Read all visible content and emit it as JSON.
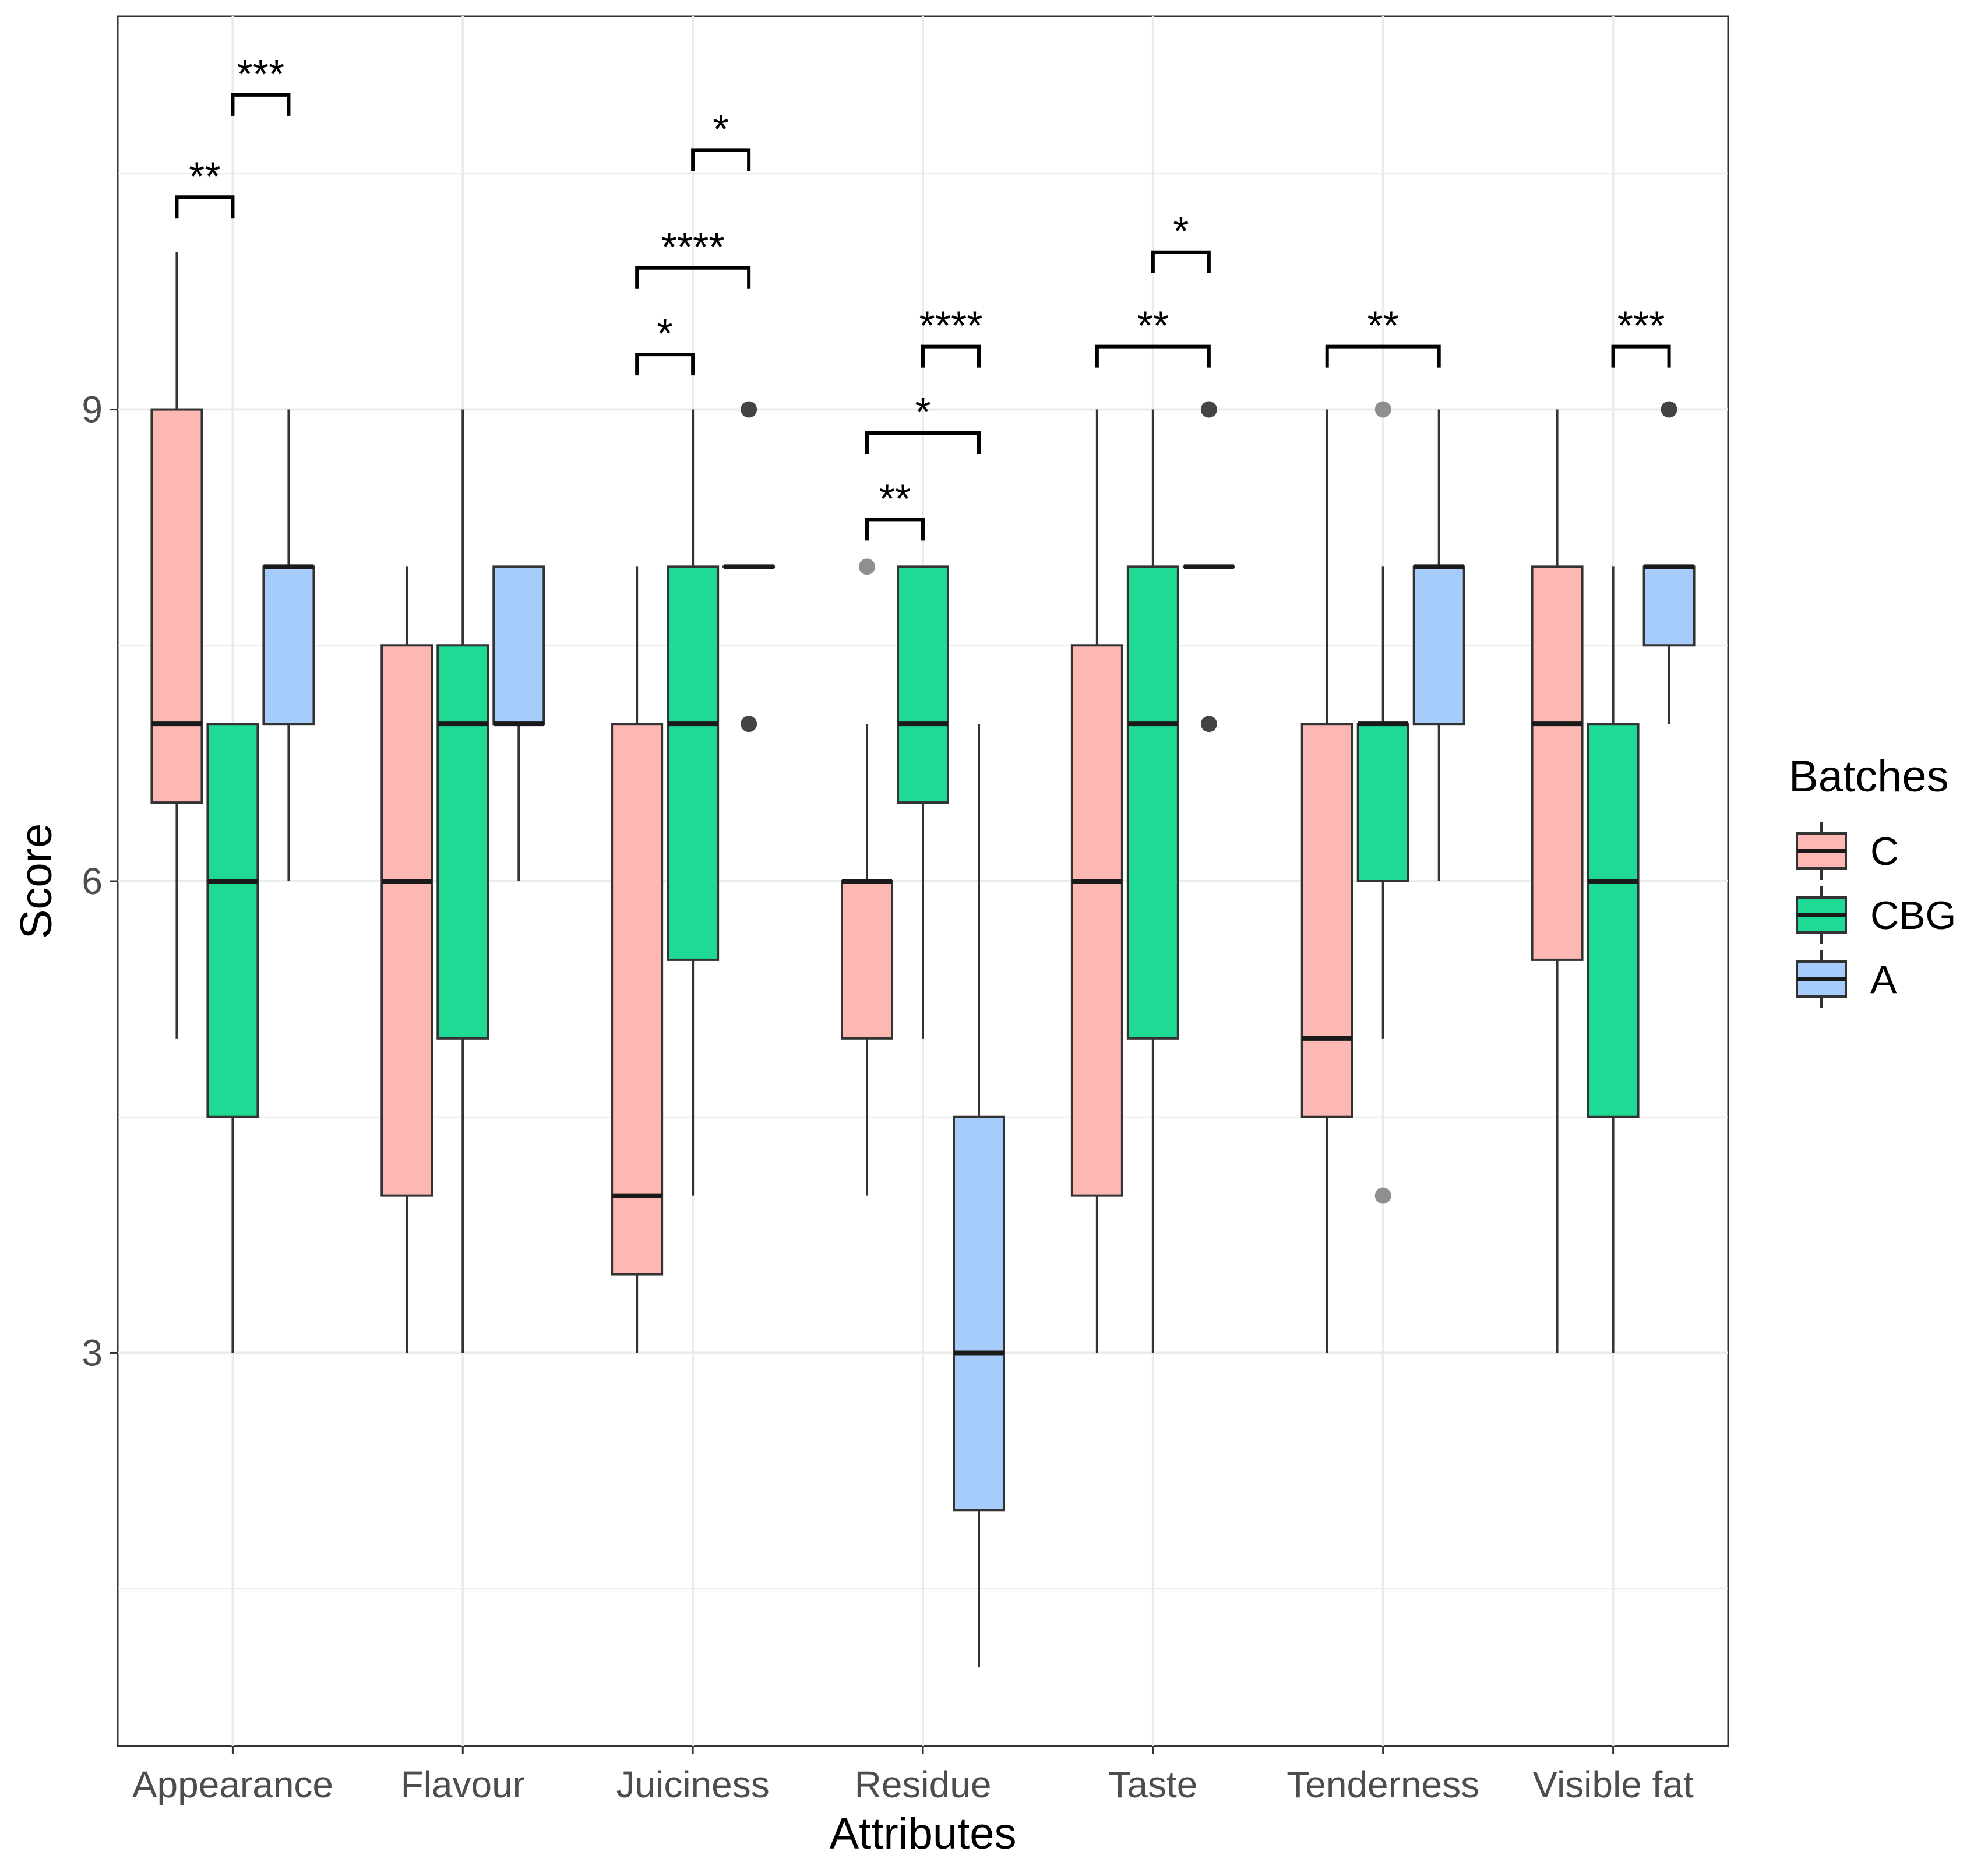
{
  "chart_data": {
    "type": "boxplot",
    "title": "",
    "xlabel": "Attributes",
    "ylabel": "Score",
    "ylim": [
      0.5,
      11.5
    ],
    "yticks": [
      3,
      6,
      9
    ],
    "grid": true,
    "legend": {
      "title": "Batches",
      "position": "right",
      "entries": [
        {
          "name": "C",
          "color": "#F8766D"
        },
        {
          "name": "CBG",
          "color": "#00BA38"
        },
        {
          "name": "A",
          "color": "#619CFF"
        }
      ]
    },
    "box_colors": {
      "C": "#FDB8B4",
      "CBG": "#1FDA95",
      "A": "#A6CCFB"
    },
    "categories": [
      "Appearance",
      "Flavour",
      "Juiciness",
      "Residue",
      "Taste",
      "Tenderness",
      "Visible fat"
    ],
    "boxes": [
      {
        "category": "Appearance",
        "batch": "C",
        "min": 5,
        "q1": 6.5,
        "median": 7,
        "q3": 9,
        "max": 10,
        "outliers": []
      },
      {
        "category": "Appearance",
        "batch": "CBG",
        "min": 3,
        "q1": 4.5,
        "median": 6,
        "q3": 7,
        "max": 7,
        "outliers": []
      },
      {
        "category": "Appearance",
        "batch": "A",
        "min": 6,
        "q1": 7,
        "median": 8,
        "q3": 8,
        "max": 9,
        "outliers": []
      },
      {
        "category": "Flavour",
        "batch": "C",
        "min": 3,
        "q1": 4,
        "median": 6,
        "q3": 7.5,
        "max": 8,
        "outliers": []
      },
      {
        "category": "Flavour",
        "batch": "CBG",
        "min": 3,
        "q1": 5,
        "median": 7,
        "q3": 7.5,
        "max": 9,
        "outliers": []
      },
      {
        "category": "Flavour",
        "batch": "A",
        "min": 6,
        "q1": 7,
        "median": 7,
        "q3": 8,
        "max": 8,
        "outliers": []
      },
      {
        "category": "Juiciness",
        "batch": "C",
        "min": 3,
        "q1": 3.5,
        "median": 4,
        "q3": 7,
        "max": 8,
        "outliers": []
      },
      {
        "category": "Juiciness",
        "batch": "CBG",
        "min": 4,
        "q1": 5.5,
        "median": 7,
        "q3": 8,
        "max": 9,
        "outliers": []
      },
      {
        "category": "Juiciness",
        "batch": "A",
        "min": 8,
        "q1": 8,
        "median": 8,
        "q3": 8,
        "max": 8,
        "outliers": [
          9,
          7
        ]
      },
      {
        "category": "Residue",
        "batch": "C",
        "min": 4,
        "q1": 5,
        "median": 6,
        "q3": 6,
        "max": 7,
        "outliers": [
          8
        ]
      },
      {
        "category": "Residue",
        "batch": "CBG",
        "min": 5,
        "q1": 6.5,
        "median": 7,
        "q3": 8,
        "max": 8,
        "outliers": []
      },
      {
        "category": "Residue",
        "batch": "A",
        "min": 1,
        "q1": 2,
        "median": 3,
        "q3": 4.5,
        "max": 7,
        "outliers": []
      },
      {
        "category": "Taste",
        "batch": "C",
        "min": 3,
        "q1": 4,
        "median": 6,
        "q3": 7.5,
        "max": 9,
        "outliers": []
      },
      {
        "category": "Taste",
        "batch": "CBG",
        "min": 3,
        "q1": 5,
        "median": 7,
        "q3": 8,
        "max": 9,
        "outliers": []
      },
      {
        "category": "Taste",
        "batch": "A",
        "min": 8,
        "q1": 8,
        "median": 8,
        "q3": 8,
        "max": 8,
        "outliers": [
          9,
          7
        ]
      },
      {
        "category": "Tenderness",
        "batch": "C",
        "min": 3,
        "q1": 4.5,
        "median": 5,
        "q3": 7,
        "max": 9,
        "outliers": []
      },
      {
        "category": "Tenderness",
        "batch": "CBG",
        "min": 5,
        "q1": 6,
        "median": 7,
        "q3": 7,
        "max": 8,
        "outliers": [
          9,
          4
        ]
      },
      {
        "category": "Tenderness",
        "batch": "A",
        "min": 6,
        "q1": 7,
        "median": 8,
        "q3": 8,
        "max": 9,
        "outliers": []
      },
      {
        "category": "Visible fat",
        "batch": "C",
        "min": 3,
        "q1": 5.5,
        "median": 7,
        "q3": 8,
        "max": 9,
        "outliers": []
      },
      {
        "category": "Visible fat",
        "batch": "CBG",
        "min": 3,
        "q1": 4.5,
        "median": 6,
        "q3": 7,
        "max": 8,
        "outliers": []
      },
      {
        "category": "Visible fat",
        "batch": "A",
        "min": 7,
        "q1": 7.5,
        "median": 8,
        "q3": 8,
        "max": 8,
        "outliers": [
          9
        ]
      }
    ],
    "significance": [
      {
        "category": "Appearance",
        "from": "C",
        "to": "CBG",
        "y": 10.35,
        "label": "**"
      },
      {
        "category": "Appearance",
        "from": "CBG",
        "to": "A",
        "y": 11.0,
        "label": "***"
      },
      {
        "category": "Juiciness",
        "from": "C",
        "to": "CBG",
        "y": 9.35,
        "label": "*"
      },
      {
        "category": "Juiciness",
        "from": "C",
        "to": "A",
        "y": 9.9,
        "label": "****"
      },
      {
        "category": "Juiciness",
        "from": "CBG",
        "to": "A",
        "y": 10.65,
        "label": "*"
      },
      {
        "category": "Residue",
        "from": "C",
        "to": "CBG",
        "y": 8.3,
        "label": "**"
      },
      {
        "category": "Residue",
        "from": "C",
        "to": "A",
        "y": 8.85,
        "label": "*"
      },
      {
        "category": "Residue",
        "from": "CBG",
        "to": "A",
        "y": 9.4,
        "label": "****"
      },
      {
        "category": "Taste",
        "from": "C",
        "to": "A",
        "y": 9.4,
        "label": "**"
      },
      {
        "category": "Taste",
        "from": "CBG",
        "to": "A",
        "y": 10.0,
        "label": "*"
      },
      {
        "category": "Tenderness",
        "from": "C",
        "to": "A",
        "y": 9.4,
        "label": "**"
      },
      {
        "category": "Visible fat",
        "from": "CBG",
        "to": "A",
        "y": 9.4,
        "label": "***"
      }
    ]
  }
}
